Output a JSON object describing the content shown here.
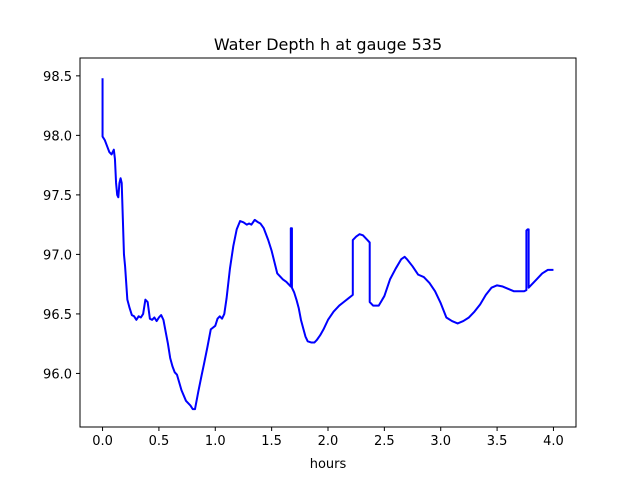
{
  "chart_data": {
    "type": "line",
    "title": "Water Depth h at gauge 535",
    "xlabel": "hours",
    "ylabel": "",
    "xlim": [
      -0.2,
      4.2
    ],
    "ylim": [
      95.55,
      98.65
    ],
    "xticks": [
      0.0,
      0.5,
      1.0,
      1.5,
      2.0,
      2.5,
      3.0,
      3.5,
      4.0
    ],
    "xtick_labels": [
      "0.0",
      "0.5",
      "1.0",
      "1.5",
      "2.0",
      "2.5",
      "3.0",
      "3.5",
      "4.0"
    ],
    "yticks": [
      96.0,
      96.5,
      97.0,
      97.5,
      98.0,
      98.5
    ],
    "ytick_labels": [
      "96.0",
      "96.5",
      "97.0",
      "97.5",
      "98.0",
      "98.5"
    ],
    "grid": false,
    "legend": "none",
    "series": [
      {
        "color": "#0000ff",
        "x": [
          0.0,
          0.0,
          0.0,
          0.02,
          0.04,
          0.06,
          0.08,
          0.1,
          0.11,
          0.12,
          0.13,
          0.14,
          0.15,
          0.16,
          0.17,
          0.18,
          0.19,
          0.2,
          0.22,
          0.24,
          0.26,
          0.28,
          0.3,
          0.32,
          0.34,
          0.36,
          0.38,
          0.4,
          0.42,
          0.44,
          0.46,
          0.48,
          0.5,
          0.52,
          0.54,
          0.56,
          0.58,
          0.6,
          0.62,
          0.64,
          0.66,
          0.7,
          0.74,
          0.78,
          0.8,
          0.82,
          0.85,
          0.88,
          0.9,
          0.93,
          0.96,
          1.0,
          1.02,
          1.04,
          1.06,
          1.08,
          1.1,
          1.13,
          1.16,
          1.19,
          1.22,
          1.25,
          1.28,
          1.3,
          1.32,
          1.35,
          1.38,
          1.4,
          1.43,
          1.47,
          1.5,
          1.55,
          1.6,
          1.63,
          1.65,
          1.67,
          1.67,
          1.68,
          1.68,
          1.69,
          1.7,
          1.72,
          1.74,
          1.76,
          1.78,
          1.8,
          1.82,
          1.85,
          1.88,
          1.9,
          1.93,
          1.96,
          2.0,
          2.05,
          2.1,
          2.14,
          2.18,
          2.22,
          2.22,
          2.25,
          2.28,
          2.31,
          2.35,
          2.37,
          2.37,
          2.4,
          2.45,
          2.5,
          2.55,
          2.6,
          2.65,
          2.68,
          2.7,
          2.75,
          2.8,
          2.85,
          2.9,
          2.95,
          3.0,
          3.05,
          3.1,
          3.15,
          3.2,
          3.25,
          3.3,
          3.35,
          3.4,
          3.45,
          3.5,
          3.55,
          3.6,
          3.65,
          3.7,
          3.74,
          3.76,
          3.76,
          3.77,
          3.78,
          3.78,
          3.8,
          3.85,
          3.9,
          3.95,
          4.0
        ],
        "y": [
          98.48,
          98.0,
          97.99,
          97.96,
          97.91,
          97.86,
          97.84,
          97.88,
          97.8,
          97.6,
          97.5,
          97.48,
          97.6,
          97.64,
          97.6,
          97.3,
          97.0,
          96.9,
          96.62,
          96.55,
          96.49,
          96.48,
          96.45,
          96.48,
          96.47,
          96.5,
          96.62,
          96.6,
          96.46,
          96.45,
          96.47,
          96.44,
          96.47,
          96.49,
          96.45,
          96.35,
          96.25,
          96.13,
          96.06,
          96.01,
          95.99,
          95.86,
          95.77,
          95.73,
          95.7,
          95.7,
          95.85,
          95.99,
          96.08,
          96.22,
          96.37,
          96.4,
          96.46,
          96.48,
          96.46,
          96.5,
          96.63,
          96.88,
          97.07,
          97.21,
          97.28,
          97.27,
          97.25,
          97.26,
          97.25,
          97.29,
          97.27,
          97.26,
          97.22,
          97.12,
          97.03,
          96.84,
          96.79,
          96.77,
          96.75,
          96.73,
          97.22,
          97.22,
          96.72,
          96.7,
          96.68,
          96.62,
          96.55,
          96.45,
          96.38,
          96.31,
          96.27,
          96.26,
          96.26,
          96.28,
          96.32,
          96.37,
          96.45,
          96.52,
          96.57,
          96.6,
          96.63,
          96.66,
          97.12,
          97.15,
          97.17,
          97.16,
          97.12,
          97.1,
          96.6,
          96.57,
          96.57,
          96.65,
          96.79,
          96.88,
          96.96,
          96.98,
          96.96,
          96.9,
          96.83,
          96.81,
          96.76,
          96.69,
          96.59,
          96.47,
          96.44,
          96.42,
          96.44,
          96.47,
          96.52,
          96.58,
          96.66,
          96.72,
          96.74,
          96.73,
          96.71,
          96.69,
          96.69,
          96.69,
          96.7,
          97.2,
          97.21,
          97.21,
          96.72,
          96.74,
          96.79,
          96.84,
          96.87,
          96.87
        ]
      }
    ]
  }
}
